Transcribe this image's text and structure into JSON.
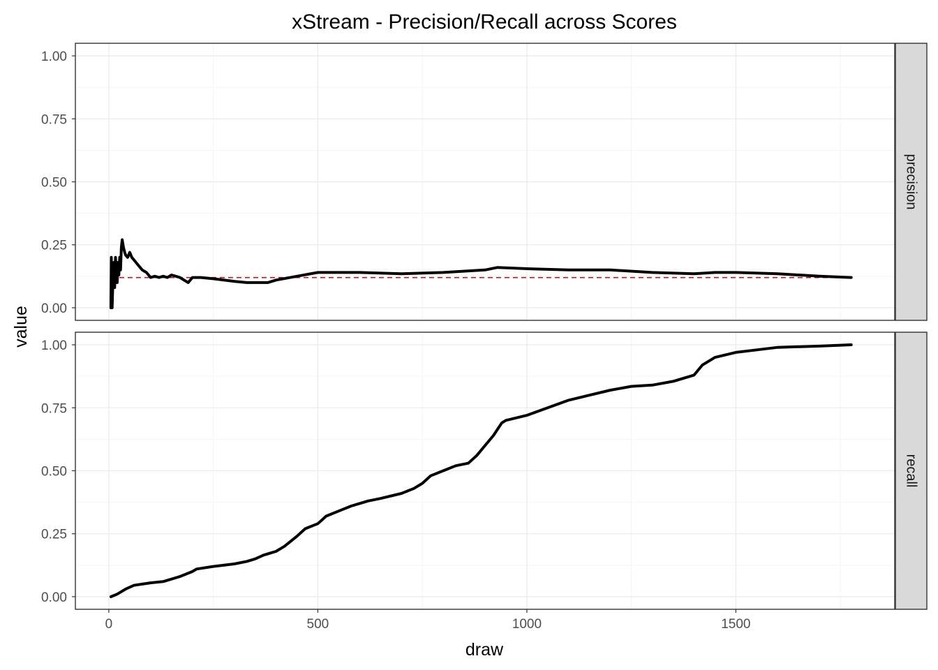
{
  "chart_data": {
    "type": "line",
    "title": "xStream - Precision/Recall across Scores",
    "xlabel": "draw",
    "ylabel": "value",
    "xlim": [
      -80,
      1880
    ],
    "ylim": [
      -0.05,
      1.05
    ],
    "x_ticks": [
      0,
      500,
      1000,
      1500
    ],
    "x_tick_labels": [
      "0",
      "500",
      "1000",
      "1500"
    ],
    "y_ticks": [
      0,
      0.25,
      0.5,
      0.75,
      1
    ],
    "y_tick_labels": [
      "0.00",
      "0.25",
      "0.50",
      "0.75",
      "1.00"
    ],
    "grid": true,
    "facets": [
      {
        "label": "precision",
        "series": [
          {
            "points": [
              [
                5,
                0.0
              ],
              [
                6,
                0.2
              ],
              [
                8,
                0.0
              ],
              [
                10,
                0.12
              ],
              [
                12,
                0.18
              ],
              [
                14,
                0.08
              ],
              [
                16,
                0.2
              ],
              [
                18,
                0.14
              ],
              [
                20,
                0.1
              ],
              [
                22,
                0.18
              ],
              [
                24,
                0.13
              ],
              [
                26,
                0.2
              ],
              [
                28,
                0.15
              ],
              [
                30,
                0.24
              ],
              [
                32,
                0.27
              ],
              [
                35,
                0.24
              ],
              [
                38,
                0.22
              ],
              [
                40,
                0.21
              ],
              [
                45,
                0.2
              ],
              [
                50,
                0.22
              ],
              [
                55,
                0.2
              ],
              [
                60,
                0.19
              ],
              [
                70,
                0.17
              ],
              [
                80,
                0.15
              ],
              [
                90,
                0.14
              ],
              [
                100,
                0.12
              ],
              [
                110,
                0.125
              ],
              [
                120,
                0.12
              ],
              [
                130,
                0.125
              ],
              [
                140,
                0.12
              ],
              [
                150,
                0.13
              ],
              [
                160,
                0.125
              ],
              [
                170,
                0.12
              ],
              [
                180,
                0.11
              ],
              [
                190,
                0.1
              ],
              [
                200,
                0.12
              ],
              [
                220,
                0.12
              ],
              [
                250,
                0.115
              ],
              [
                300,
                0.105
              ],
              [
                330,
                0.1
              ],
              [
                350,
                0.1
              ],
              [
                380,
                0.1
              ],
              [
                400,
                0.11
              ],
              [
                450,
                0.125
              ],
              [
                500,
                0.14
              ],
              [
                600,
                0.14
              ],
              [
                700,
                0.135
              ],
              [
                800,
                0.14
              ],
              [
                900,
                0.15
              ],
              [
                930,
                0.16
              ],
              [
                1000,
                0.155
              ],
              [
                1100,
                0.15
              ],
              [
                1200,
                0.15
              ],
              [
                1300,
                0.14
              ],
              [
                1400,
                0.135
              ],
              [
                1450,
                0.14
              ],
              [
                1500,
                0.14
              ],
              [
                1600,
                0.135
              ],
              [
                1700,
                0.125
              ],
              [
                1776,
                0.12
              ]
            ]
          }
        ],
        "reference_line": 0.12
      },
      {
        "label": "recall",
        "series": [
          {
            "points": [
              [
                5,
                0.0
              ],
              [
                20,
                0.01
              ],
              [
                40,
                0.03
              ],
              [
                60,
                0.045
              ],
              [
                80,
                0.05
              ],
              [
                100,
                0.055
              ],
              [
                130,
                0.06
              ],
              [
                150,
                0.07
              ],
              [
                170,
                0.08
              ],
              [
                200,
                0.1
              ],
              [
                210,
                0.11
              ],
              [
                250,
                0.12
              ],
              [
                300,
                0.13
              ],
              [
                330,
                0.14
              ],
              [
                350,
                0.15
              ],
              [
                370,
                0.165
              ],
              [
                390,
                0.175
              ],
              [
                400,
                0.18
              ],
              [
                420,
                0.2
              ],
              [
                450,
                0.24
              ],
              [
                470,
                0.27
              ],
              [
                500,
                0.29
              ],
              [
                520,
                0.32
              ],
              [
                550,
                0.34
              ],
              [
                580,
                0.36
              ],
              [
                600,
                0.37
              ],
              [
                620,
                0.38
              ],
              [
                650,
                0.39
              ],
              [
                700,
                0.41
              ],
              [
                730,
                0.43
              ],
              [
                750,
                0.45
              ],
              [
                770,
                0.48
              ],
              [
                800,
                0.5
              ],
              [
                830,
                0.52
              ],
              [
                860,
                0.53
              ],
              [
                880,
                0.56
              ],
              [
                900,
                0.6
              ],
              [
                920,
                0.64
              ],
              [
                940,
                0.69
              ],
              [
                950,
                0.7
              ],
              [
                1000,
                0.72
              ],
              [
                1050,
                0.75
              ],
              [
                1100,
                0.78
              ],
              [
                1150,
                0.8
              ],
              [
                1200,
                0.82
              ],
              [
                1250,
                0.835
              ],
              [
                1300,
                0.84
              ],
              [
                1350,
                0.855
              ],
              [
                1400,
                0.88
              ],
              [
                1420,
                0.92
              ],
              [
                1450,
                0.95
              ],
              [
                1500,
                0.97
              ],
              [
                1550,
                0.98
              ],
              [
                1600,
                0.99
              ],
              [
                1700,
                0.995
              ],
              [
                1776,
                1.0
              ]
            ]
          }
        ]
      }
    ]
  }
}
